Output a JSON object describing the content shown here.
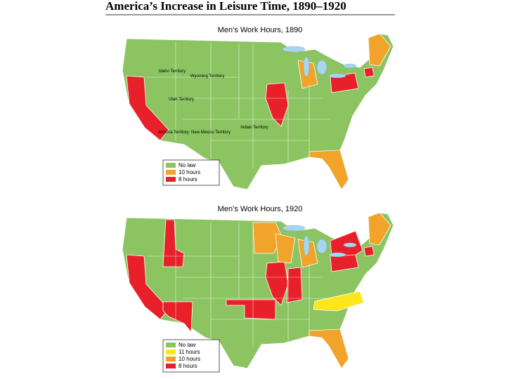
{
  "title": "America’s Increase in Leisure Time, 1890–1920",
  "maps": [
    {
      "title": "Men’s Work Hours, 1890",
      "legend": [
        {
          "label": "No law",
          "color": "#8cc461"
        },
        {
          "label": "10 hours",
          "color": "#f2a32a"
        },
        {
          "label": "8 hours",
          "color": "#e8202a"
        }
      ],
      "labels": [
        "Idaho Territory",
        "Wyoming Territory",
        "Utah Territory",
        "Arizona Territory",
        "New Mexico Territory",
        "Indian Territory"
      ]
    },
    {
      "title": "Men’s Work Hours, 1920",
      "legend": [
        {
          "label": "No law",
          "color": "#8cc461"
        },
        {
          "label": "11 hours",
          "color": "#fde61c"
        },
        {
          "label": "10 hours",
          "color": "#f2a32a"
        },
        {
          "label": "8 hours",
          "color": "#e8202a"
        }
      ],
      "labels": []
    }
  ]
}
